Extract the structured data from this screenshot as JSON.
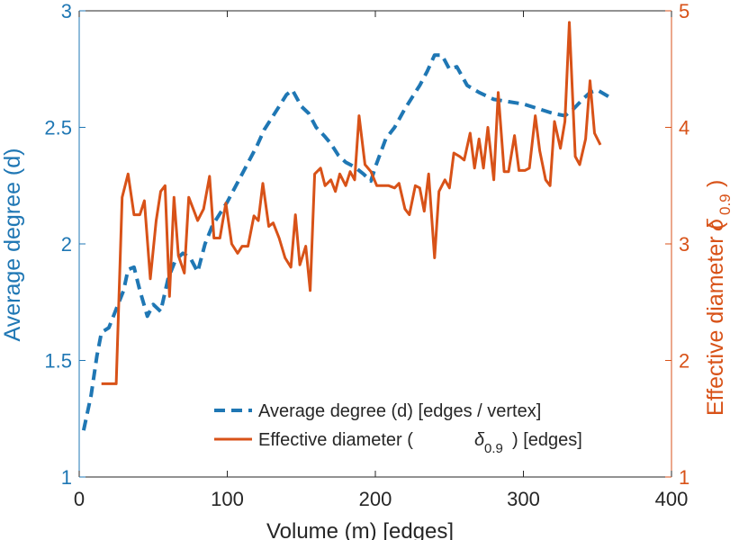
{
  "chart_data": {
    "type": "line",
    "xlabel": "Volume (m) [edges]",
    "ylabel_left": "Average degree (d)",
    "ylabel_right": "Effective diameter (",
    "ylabel_right_symbol": "δ",
    "ylabel_right_sub": "0.9",
    "ylabel_right_tail": ")",
    "xlim": [
      0,
      400
    ],
    "ylim_left": [
      1,
      3
    ],
    "ylim_right": [
      1,
      5
    ],
    "x_ticks": [
      "0",
      "100",
      "200",
      "300",
      "400"
    ],
    "y_ticks_left": [
      "1",
      "1.5",
      "2",
      "2.5",
      "3"
    ],
    "y_ticks_right": [
      "1",
      "2",
      "3",
      "4",
      "5"
    ],
    "grid": false,
    "legend_position": "bottom-right",
    "colors": {
      "left": "#1f77b4",
      "right": "#d85218",
      "axis": "#262626"
    },
    "legend": {
      "series1": "Average degree (d) [edges / vertex]",
      "series2_pre": "Effective diameter (",
      "series2_symbol": "δ",
      "series2_sub": "0.9",
      "series2_post": ") [edges]"
    },
    "series": [
      {
        "axis": "left",
        "style": "dashed",
        "points": [
          [
            3,
            1.2
          ],
          [
            8,
            1.35
          ],
          [
            12,
            1.52
          ],
          [
            15,
            1.62
          ],
          [
            20,
            1.64
          ],
          [
            25,
            1.72
          ],
          [
            30,
            1.8
          ],
          [
            33,
            1.89
          ],
          [
            37,
            1.9
          ],
          [
            41,
            1.8
          ],
          [
            46,
            1.69
          ],
          [
            50,
            1.74
          ],
          [
            55,
            1.71
          ],
          [
            60,
            1.85
          ],
          [
            65,
            1.93
          ],
          [
            70,
            1.96
          ],
          [
            75,
            1.94
          ],
          [
            80,
            1.88
          ],
          [
            85,
            2.0
          ],
          [
            90,
            2.08
          ],
          [
            100,
            2.18
          ],
          [
            110,
            2.3
          ],
          [
            120,
            2.42
          ],
          [
            125,
            2.49
          ],
          [
            130,
            2.54
          ],
          [
            135,
            2.59
          ],
          [
            140,
            2.64
          ],
          [
            144,
            2.66
          ],
          [
            150,
            2.59
          ],
          [
            155,
            2.56
          ],
          [
            160,
            2.5
          ],
          [
            166,
            2.46
          ],
          [
            170,
            2.43
          ],
          [
            175,
            2.38
          ],
          [
            180,
            2.35
          ],
          [
            186,
            2.33
          ],
          [
            192,
            2.3
          ],
          [
            197,
            2.27
          ],
          [
            200,
            2.33
          ],
          [
            207,
            2.45
          ],
          [
            213,
            2.5
          ],
          [
            220,
            2.58
          ],
          [
            225,
            2.63
          ],
          [
            230,
            2.68
          ],
          [
            235,
            2.74
          ],
          [
            240,
            2.81
          ],
          [
            245,
            2.81
          ],
          [
            250,
            2.75
          ],
          [
            255,
            2.76
          ],
          [
            262,
            2.68
          ],
          [
            270,
            2.65
          ],
          [
            280,
            2.62
          ],
          [
            290,
            2.61
          ],
          [
            300,
            2.6
          ],
          [
            310,
            2.58
          ],
          [
            320,
            2.56
          ],
          [
            328,
            2.55
          ],
          [
            334,
            2.58
          ],
          [
            340,
            2.62
          ],
          [
            345,
            2.65
          ],
          [
            350,
            2.66
          ],
          [
            358,
            2.63
          ]
        ]
      },
      {
        "axis": "right",
        "style": "solid",
        "points": [
          [
            15,
            1.8
          ],
          [
            25,
            1.8
          ],
          [
            29,
            3.4
          ],
          [
            33,
            3.6
          ],
          [
            37,
            3.25
          ],
          [
            41,
            3.25
          ],
          [
            44,
            3.37
          ],
          [
            48,
            2.7
          ],
          [
            52,
            3.2
          ],
          [
            55,
            3.45
          ],
          [
            58,
            3.5
          ],
          [
            61,
            2.55
          ],
          [
            64,
            3.4
          ],
          [
            67,
            2.9
          ],
          [
            71,
            2.75
          ],
          [
            74,
            3.4
          ],
          [
            77,
            3.3
          ],
          [
            80,
            3.2
          ],
          [
            84,
            3.3
          ],
          [
            88,
            3.58
          ],
          [
            91,
            3.05
          ],
          [
            95,
            3.05
          ],
          [
            99,
            3.35
          ],
          [
            103,
            3.0
          ],
          [
            107,
            2.92
          ],
          [
            110,
            2.98
          ],
          [
            114,
            2.98
          ],
          [
            118,
            3.24
          ],
          [
            121,
            3.2
          ],
          [
            124,
            3.52
          ],
          [
            128,
            3.15
          ],
          [
            131,
            3.18
          ],
          [
            135,
            3.05
          ],
          [
            139,
            2.88
          ],
          [
            143,
            2.8
          ],
          [
            146,
            3.25
          ],
          [
            149,
            2.82
          ],
          [
            153,
            2.98
          ],
          [
            156,
            2.6
          ],
          [
            159,
            3.6
          ],
          [
            163,
            3.65
          ],
          [
            166,
            3.5
          ],
          [
            170,
            3.55
          ],
          [
            173,
            3.45
          ],
          [
            176,
            3.6
          ],
          [
            180,
            3.5
          ],
          [
            183,
            3.62
          ],
          [
            186,
            3.55
          ],
          [
            189,
            4.1
          ],
          [
            193,
            3.68
          ],
          [
            197,
            3.62
          ],
          [
            201,
            3.5
          ],
          [
            205,
            3.5
          ],
          [
            209,
            3.5
          ],
          [
            213,
            3.48
          ],
          [
            216,
            3.52
          ],
          [
            220,
            3.3
          ],
          [
            223,
            3.25
          ],
          [
            227,
            3.5
          ],
          [
            230,
            3.48
          ],
          [
            233,
            3.28
          ],
          [
            236,
            3.6
          ],
          [
            240,
            2.88
          ],
          [
            243,
            3.45
          ],
          [
            247,
            3.55
          ],
          [
            250,
            3.48
          ],
          [
            253,
            3.78
          ],
          [
            257,
            3.75
          ],
          [
            260,
            3.72
          ],
          [
            264,
            3.95
          ],
          [
            267,
            3.65
          ],
          [
            270,
            3.9
          ],
          [
            273,
            3.65
          ],
          [
            276,
            4.0
          ],
          [
            280,
            3.55
          ],
          [
            283,
            4.3
          ],
          [
            287,
            3.62
          ],
          [
            290,
            3.62
          ],
          [
            294,
            3.93
          ],
          [
            297,
            3.63
          ],
          [
            301,
            3.63
          ],
          [
            304,
            3.65
          ],
          [
            308,
            4.1
          ],
          [
            311,
            3.8
          ],
          [
            315,
            3.55
          ],
          [
            318,
            3.5
          ],
          [
            321,
            4.05
          ],
          [
            325,
            3.82
          ],
          [
            328,
            4.05
          ],
          [
            331,
            4.9
          ],
          [
            335,
            3.75
          ],
          [
            338,
            3.68
          ],
          [
            342,
            3.9
          ],
          [
            345,
            4.4
          ],
          [
            348,
            3.95
          ],
          [
            352,
            3.85
          ]
        ]
      }
    ]
  }
}
